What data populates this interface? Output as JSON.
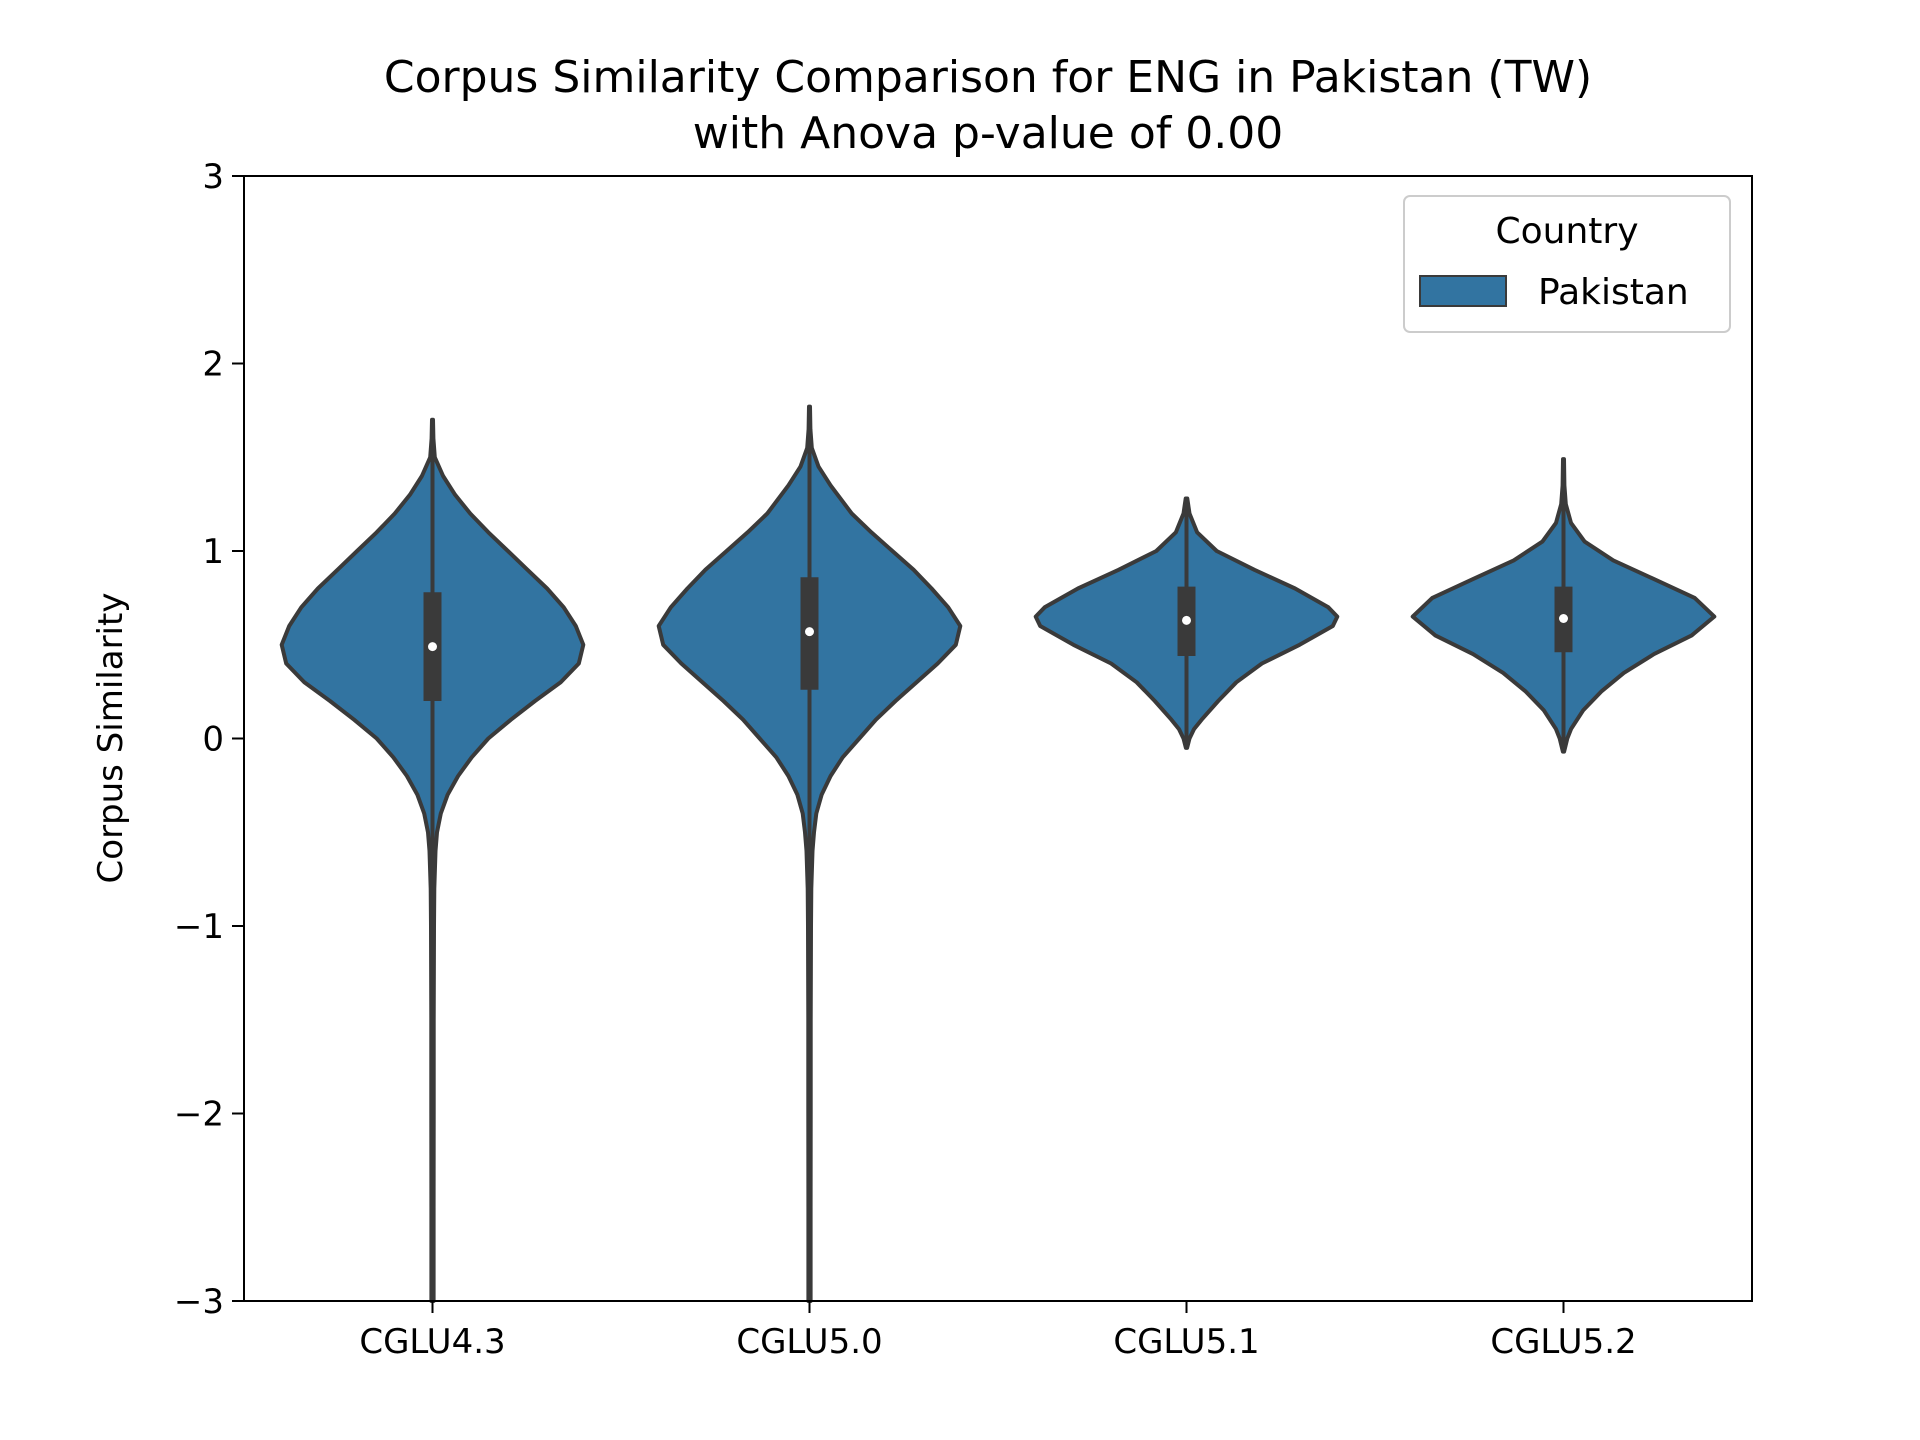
{
  "chart_data": {
    "type": "violin",
    "title_line1": "Corpus Similarity Comparison for ENG in Pakistan (TW)",
    "title_line2": "with Anova p-value of 0.00",
    "ylabel": "Corpus Similarity",
    "xlabel": "",
    "ylim": [
      -3,
      3
    ],
    "yticks": [
      -3,
      -2,
      -1,
      0,
      1,
      2,
      3
    ],
    "ytick_labels": [
      "−3",
      "−2",
      "−1",
      "0",
      "1",
      "2",
      "3"
    ],
    "categories": [
      "CGLU4.3",
      "CGLU5.0",
      "CGLU5.1",
      "CGLU5.2"
    ],
    "legend": {
      "title": "Country",
      "placement": "upper right",
      "entries": [
        "Pakistan"
      ]
    },
    "series": [
      {
        "name": "Pakistan",
        "color": "#3274a1",
        "edge_color": "#3a3a3a",
        "violins": [
          {
            "category": "CGLU4.3",
            "median": 0.49,
            "q1": 0.2,
            "q3": 0.78,
            "min": -3.0,
            "max": 1.7,
            "profile": [
              [
                1.7,
                0.003
              ],
              [
                1.6,
                0.006
              ],
              [
                1.5,
                0.015
              ],
              [
                1.4,
                0.07
              ],
              [
                1.3,
                0.15
              ],
              [
                1.2,
                0.25
              ],
              [
                1.1,
                0.37
              ],
              [
                1.0,
                0.5
              ],
              [
                0.9,
                0.63
              ],
              [
                0.8,
                0.76
              ],
              [
                0.7,
                0.87
              ],
              [
                0.6,
                0.95
              ],
              [
                0.5,
                1.0
              ],
              [
                0.4,
                0.97
              ],
              [
                0.3,
                0.85
              ],
              [
                0.2,
                0.68
              ],
              [
                0.1,
                0.52
              ],
              [
                0.0,
                0.37
              ],
              [
                -0.1,
                0.26
              ],
              [
                -0.2,
                0.17
              ],
              [
                -0.3,
                0.1
              ],
              [
                -0.4,
                0.055
              ],
              [
                -0.5,
                0.03
              ],
              [
                -0.6,
                0.02
              ],
              [
                -0.8,
                0.012
              ],
              [
                -1.0,
                0.01
              ],
              [
                -1.5,
                0.008
              ],
              [
                -2.0,
                0.008
              ],
              [
                -2.5,
                0.007
              ],
              [
                -3.0,
                0.007
              ]
            ]
          },
          {
            "category": "CGLU5.0",
            "median": 0.57,
            "q1": 0.26,
            "q3": 0.86,
            "min": -3.0,
            "max": 1.77,
            "profile": [
              [
                1.77,
                0.003
              ],
              [
                1.65,
                0.006
              ],
              [
                1.55,
                0.015
              ],
              [
                1.45,
                0.06
              ],
              [
                1.35,
                0.14
              ],
              [
                1.2,
                0.28
              ],
              [
                1.1,
                0.41
              ],
              [
                1.0,
                0.55
              ],
              [
                0.9,
                0.69
              ],
              [
                0.8,
                0.81
              ],
              [
                0.7,
                0.92
              ],
              [
                0.6,
                1.0
              ],
              [
                0.5,
                0.97
              ],
              [
                0.4,
                0.85
              ],
              [
                0.3,
                0.71
              ],
              [
                0.2,
                0.57
              ],
              [
                0.1,
                0.44
              ],
              [
                0.0,
                0.33
              ],
              [
                -0.1,
                0.22
              ],
              [
                -0.2,
                0.14
              ],
              [
                -0.3,
                0.08
              ],
              [
                -0.4,
                0.045
              ],
              [
                -0.5,
                0.03
              ],
              [
                -0.6,
                0.02
              ],
              [
                -0.8,
                0.012
              ],
              [
                -1.0,
                0.01
              ],
              [
                -1.5,
                0.008
              ],
              [
                -2.0,
                0.008
              ],
              [
                -2.5,
                0.007
              ],
              [
                -3.0,
                0.007
              ]
            ]
          },
          {
            "category": "CGLU5.1",
            "median": 0.63,
            "q1": 0.44,
            "q3": 0.81,
            "min": -0.05,
            "max": 1.28,
            "profile": [
              [
                1.28,
                0.005
              ],
              [
                1.2,
                0.02
              ],
              [
                1.1,
                0.07
              ],
              [
                1.0,
                0.2
              ],
              [
                0.9,
                0.45
              ],
              [
                0.8,
                0.72
              ],
              [
                0.7,
                0.94
              ],
              [
                0.65,
                1.0
              ],
              [
                0.6,
                0.97
              ],
              [
                0.5,
                0.75
              ],
              [
                0.4,
                0.5
              ],
              [
                0.3,
                0.33
              ],
              [
                0.2,
                0.21
              ],
              [
                0.1,
                0.1
              ],
              [
                0.05,
                0.05
              ],
              [
                0.0,
                0.02
              ],
              [
                -0.05,
                0.004
              ]
            ]
          },
          {
            "category": "CGLU5.2",
            "median": 0.64,
            "q1": 0.46,
            "q3": 0.81,
            "min": -0.07,
            "max": 1.49,
            "profile": [
              [
                1.49,
                0.003
              ],
              [
                1.35,
                0.006
              ],
              [
                1.25,
                0.015
              ],
              [
                1.15,
                0.05
              ],
              [
                1.05,
                0.14
              ],
              [
                0.95,
                0.33
              ],
              [
                0.85,
                0.6
              ],
              [
                0.75,
                0.87
              ],
              [
                0.65,
                1.0
              ],
              [
                0.55,
                0.85
              ],
              [
                0.45,
                0.6
              ],
              [
                0.35,
                0.4
              ],
              [
                0.25,
                0.25
              ],
              [
                0.15,
                0.13
              ],
              [
                0.05,
                0.05
              ],
              [
                0.0,
                0.025
              ],
              [
                -0.07,
                0.004
              ]
            ]
          }
        ]
      }
    ]
  }
}
